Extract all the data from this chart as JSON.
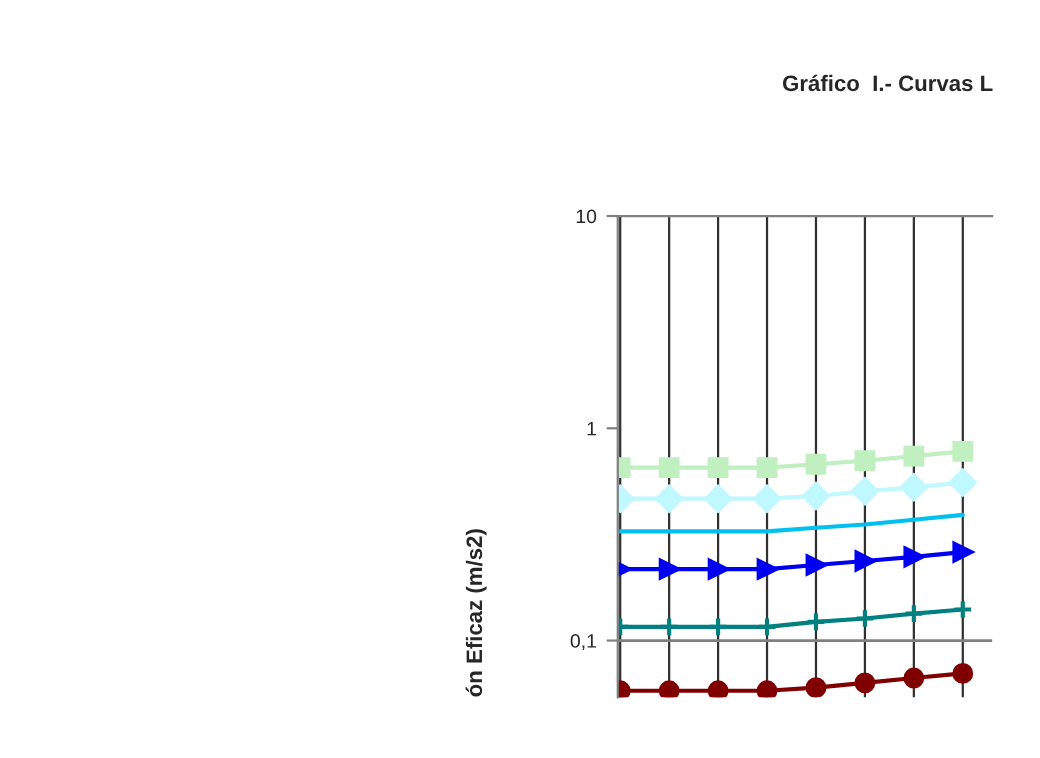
{
  "chart_data": {
    "type": "line",
    "title": "Gráfico  I.- Curvas L",
    "ylabel": "ón Eficaz (m/s2)",
    "categories": [
      null,
      null,
      null,
      null,
      null,
      null,
      null,
      null
    ],
    "series": [
      {
        "color": "#c0f0c0",
        "marker": "square",
        "values": [
          0.653,
          0.653,
          0.653,
          0.653,
          0.677,
          0.703,
          0.739,
          0.779
        ]
      },
      {
        "color": "#c0f8ff",
        "marker": "diamond",
        "values": [
          0.466,
          0.466,
          0.466,
          0.466,
          0.48,
          0.505,
          0.527,
          0.556
        ]
      },
      {
        "color": "#00c0f0",
        "marker": "none",
        "values": [
          0.327,
          0.327,
          0.327,
          0.327,
          0.34,
          0.352,
          0.371,
          0.391
        ]
      },
      {
        "color": "#0000f0",
        "marker": "triangle",
        "values": [
          0.217,
          0.217,
          0.217,
          0.217,
          0.227,
          0.237,
          0.248,
          0.261
        ]
      },
      {
        "color": "#008080",
        "marker": "cross",
        "values": [
          0.116,
          0.116,
          0.116,
          0.116,
          0.1225,
          0.127,
          0.134,
          0.14
        ]
      },
      {
        "color": "#800000",
        "marker": "circle",
        "values": [
          0.058,
          0.058,
          0.058,
          0.058,
          0.06,
          0.0632,
          0.0666,
          0.07
        ]
      }
    ],
    "log": "y",
    "ylim": [
      0.054,
      10
    ],
    "yticks": [
      {
        "value": 0.1,
        "label": "0,1"
      },
      1,
      10
    ],
    "grid": "x",
    "tick_labels": "y",
    "legend": false,
    "line_style": "solid",
    "ref_lines": [
      {
        "axis": "y",
        "value": 0.1,
        "color": "#808080"
      }
    ]
  }
}
